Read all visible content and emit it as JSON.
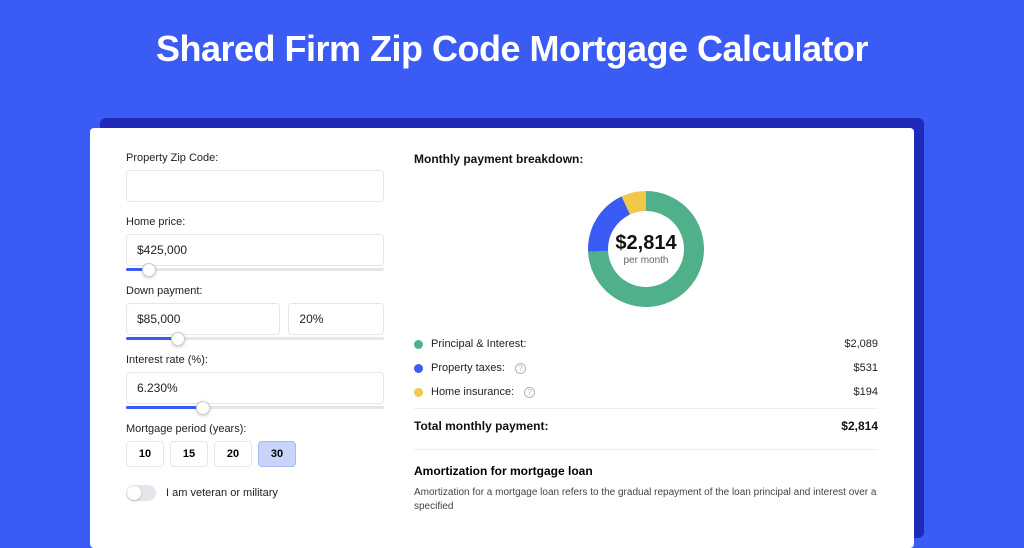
{
  "title": "Shared Firm Zip Code Mortgage Calculator",
  "colors": {
    "page_bg": "#3b5bf5",
    "shadow": "#1d2bb8",
    "card_bg": "#ffffff",
    "principal": "#4fb08a",
    "taxes": "#3b5bf5",
    "insurance": "#f0c94a",
    "period_active_bg": "#c9d4fb"
  },
  "form": {
    "zip_label": "Property Zip Code:",
    "zip_value": "",
    "home_price_label": "Home price:",
    "home_price_value": "$425,000",
    "home_price_slider_pct": 9,
    "down_label": "Down payment:",
    "down_value": "$85,000",
    "down_pct_value": "20%",
    "down_slider_pct": 20,
    "rate_label": "Interest rate (%):",
    "rate_value": "6.230%",
    "rate_slider_pct": 30,
    "period_label": "Mortgage period (years):",
    "periods": [
      "10",
      "15",
      "20",
      "30"
    ],
    "period_active_index": 3,
    "veteran_label": "I am veteran or military",
    "veteran_on": false
  },
  "breakdown": {
    "title": "Monthly payment breakdown:",
    "center_amount": "$2,814",
    "center_sub": "per month",
    "donut": {
      "type": "donut",
      "outer_r": 58,
      "inner_r": 38,
      "segments": [
        {
          "label": "Principal & Interest:",
          "value": "$2,089",
          "color": "#4fb08a",
          "pct": 74.2
        },
        {
          "label": "Property taxes:",
          "value": "$531",
          "color": "#3b5bf5",
          "pct": 18.9,
          "info": true
        },
        {
          "label": "Home insurance:",
          "value": "$194",
          "color": "#f0c94a",
          "pct": 6.9,
          "info": true
        }
      ]
    },
    "total_label": "Total monthly payment:",
    "total_value": "$2,814"
  },
  "amort": {
    "title": "Amortization for mortgage loan",
    "text": "Amortization for a mortgage loan refers to the gradual repayment of the loan principal and interest over a specified"
  }
}
